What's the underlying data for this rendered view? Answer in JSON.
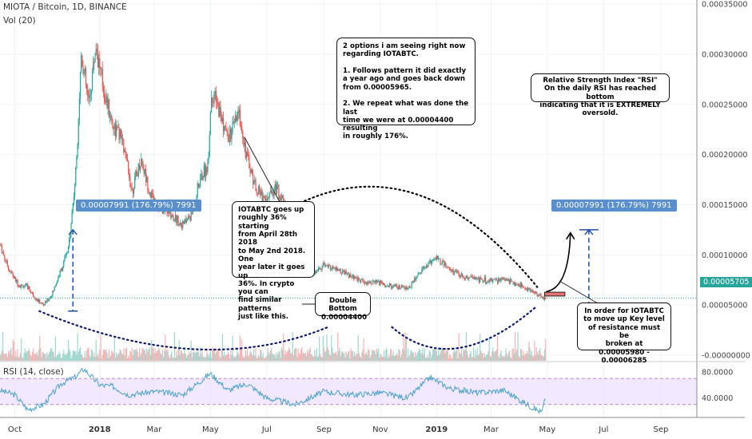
{
  "header": {
    "symbol_line": "MIOTA / Bitcoin, 1D, BINANCE",
    "vol_label": "Vol (20)",
    "rsi_label": "RSI (14, close)"
  },
  "current_price": "0.00005705",
  "colors": {
    "up": "#26a69a",
    "down": "#ef5350",
    "rsi_line": "#4aa3c8",
    "rsi_band": "#e9d8ff",
    "dots": "#0d1a6e",
    "tag": "#5a8fce"
  },
  "chart_data": [
    {
      "type": "line",
      "title": "MIOTA / Bitcoin, 1D, BINANCE",
      "x_ticks": [
        "Oct",
        "2018",
        "Mar",
        "May",
        "Jul",
        "Sep",
        "Nov",
        "2019",
        "Mar",
        "May",
        "Jul",
        "Sep"
      ],
      "y_ticks": [
        "0.00035000",
        "0.00030000",
        "0.00025000",
        "0.00020000",
        "0.00015000",
        "0.00010000",
        "0.00005000",
        "-0.00000000"
      ],
      "ylim": [
        -5.5e-06,
        0.000354
      ],
      "x_range": [
        "2017-09-15",
        "2019-10-10"
      ],
      "series": [
        {
          "name": "",
          "points": [
            [
              "2017-09-15",
              0.00011
            ],
            [
              "2017-09-25",
              8.5e-05
            ],
            [
              "2017-10-05",
              7e-05
            ],
            [
              "2017-10-15",
              6.8e-05
            ],
            [
              "2017-10-25",
              5.5e-05
            ],
            [
              "2017-11-01",
              5e-05
            ],
            [
              "2017-11-10",
              6e-05
            ],
            [
              "2017-11-20",
              8.5e-05
            ],
            [
              "2017-11-28",
              0.000105
            ],
            [
              "2017-12-06",
              0.00018
            ],
            [
              "2017-12-12",
              0.0003
            ],
            [
              "2017-12-20",
              0.00025
            ],
            [
              "2017-12-28",
              0.00031
            ],
            [
              "2018-01-05",
              0.000265
            ],
            [
              "2018-01-15",
              0.00023
            ],
            [
              "2018-01-25",
              0.000215
            ],
            [
              "2018-02-05",
              0.000165
            ],
            [
              "2018-02-15",
              0.000195
            ],
            [
              "2018-02-25",
              0.00016
            ],
            [
              "2018-03-10",
              0.000145
            ],
            [
              "2018-03-20",
              0.00014
            ],
            [
              "2018-04-01",
              0.00013
            ],
            [
              "2018-04-10",
              0.00014
            ],
            [
              "2018-04-20",
              0.000175
            ],
            [
              "2018-04-28",
              0.00019
            ],
            [
              "2018-05-02",
              0.00026
            ],
            [
              "2018-05-10",
              0.000245
            ],
            [
              "2018-05-20",
              0.000215
            ],
            [
              "2018-06-01",
              0.00024
            ],
            [
              "2018-06-10",
              0.000195
            ],
            [
              "2018-06-20",
              0.000165
            ],
            [
              "2018-07-01",
              0.000155
            ],
            [
              "2018-07-10",
              0.00017
            ],
            [
              "2018-07-20",
              0.00015
            ],
            [
              "2018-08-01",
              0.000125
            ],
            [
              "2018-08-10",
              9e-05
            ],
            [
              "2018-08-20",
              8e-05
            ],
            [
              "2018-09-01",
              9e-05
            ],
            [
              "2018-09-15",
              8.5e-05
            ],
            [
              "2018-10-01",
              7.8e-05
            ],
            [
              "2018-10-15",
              7.3e-05
            ],
            [
              "2018-11-01",
              7.2e-05
            ],
            [
              "2018-11-15",
              6.8e-05
            ],
            [
              "2018-12-01",
              6.6e-05
            ],
            [
              "2018-12-15",
              8.5e-05
            ],
            [
              "2019-01-01",
              9.8e-05
            ],
            [
              "2019-01-15",
              8.5e-05
            ],
            [
              "2019-02-01",
              7.8e-05
            ],
            [
              "2019-02-15",
              7.6e-05
            ],
            [
              "2019-03-01",
              7.4e-05
            ],
            [
              "2019-03-15",
              7.6e-05
            ],
            [
              "2019-04-01",
              7e-05
            ],
            [
              "2019-04-15",
              6.4e-05
            ],
            [
              "2019-04-25",
              5.7e-05
            ],
            [
              "2019-04-29",
              5.7e-05
            ]
          ]
        }
      ]
    },
    {
      "type": "line",
      "title": "RSI (14, close)",
      "y_ticks": [
        "80.0000",
        "40.0000"
      ],
      "ylim": [
        10,
        95
      ],
      "x_range": [
        "2017-09-15",
        "2019-10-10"
      ],
      "series": [
        {
          "name": "",
          "points": [
            [
              "2017-09-15",
              52
            ],
            [
              "2017-10-01",
              45
            ],
            [
              "2017-10-15",
              22
            ],
            [
              "2017-11-01",
              30
            ],
            [
              "2017-11-20",
              62
            ],
            [
              "2017-12-05",
              72
            ],
            [
              "2017-12-15",
              85
            ],
            [
              "2018-01-01",
              60
            ],
            [
              "2018-01-15",
              58
            ],
            [
              "2018-02-01",
              45
            ],
            [
              "2018-03-01",
              50
            ],
            [
              "2018-04-01",
              45
            ],
            [
              "2018-05-01",
              78
            ],
            [
              "2018-05-20",
              52
            ],
            [
              "2018-06-10",
              62
            ],
            [
              "2018-07-01",
              40
            ],
            [
              "2018-08-01",
              30
            ],
            [
              "2018-09-01",
              50
            ],
            [
              "2018-10-01",
              45
            ],
            [
              "2018-11-01",
              48
            ],
            [
              "2018-12-01",
              40
            ],
            [
              "2018-12-25",
              72
            ],
            [
              "2019-01-15",
              55
            ],
            [
              "2019-02-15",
              48
            ],
            [
              "2019-03-15",
              52
            ],
            [
              "2019-04-15",
              25
            ],
            [
              "2019-04-25",
              18
            ],
            [
              "2019-04-29",
              40
            ]
          ]
        }
      ]
    }
  ],
  "annotations": {
    "two_options": "2 options i am seeing right now\nregarding IOTABTC.\n\n1. Follows pattern it did exactly\na year ago and goes back down\nfrom 0.00005965.\n\n2. We repeat what was done the last\ntime we were at 0.00004400 resulting\nin roughly 176%.",
    "rsi_note": "Relative Strength Index \"RSI\"\nOn the daily RSI has reached bottom\nindicating that it is EXTREMELY oversold.",
    "iota_note": "IOTABTC goes up\nroughly 36% starting\nfrom April 28th 2018\nto May 2nd 2018. One\nyear later it goes up\n36%. In crypto you can\nfind similar patterns\njust like this.",
    "double_bottom": "Double Bottom\n0.00004400",
    "resistance_note": "In order for IOTABTC\nto move up Key level\nof resistance must be\nbroken at\n0.00005980 - 0.00006285",
    "measure_left": "0.00007991 (176.79%) 7991",
    "measure_right": "0.00007991 (176.79%) 7991"
  }
}
